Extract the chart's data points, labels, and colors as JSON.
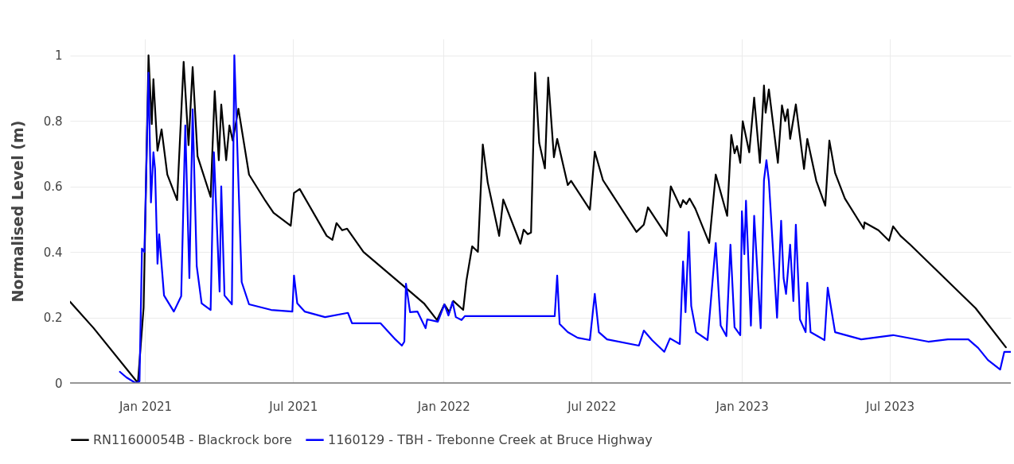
{
  "chart_data": {
    "type": "line",
    "ylabel": "Normalised Level (m)",
    "xlim": [
      "2020-10-01",
      "2023-11-26"
    ],
    "xticks": [
      {
        "value": "2021-01-01",
        "label": "Jan 2021"
      },
      {
        "value": "2021-07-01",
        "label": "Jul 2021"
      },
      {
        "value": "2022-01-01",
        "label": "Jan 2022"
      },
      {
        "value": "2022-07-01",
        "label": "Jul 2022"
      },
      {
        "value": "2023-01-01",
        "label": "Jan 2023"
      },
      {
        "value": "2023-07-01",
        "label": "Jul 2023"
      }
    ],
    "ylim": [
      0,
      1.05
    ],
    "yticks": [
      0,
      0.2,
      0.4,
      0.6,
      0.8,
      1
    ],
    "grid": true,
    "legend": "bottom",
    "marker": "none",
    "line_style": "solid",
    "series": [
      {
        "name": "RN11600054B - Blackrock bore",
        "color": "#000000",
        "x": [
          "2020-10-01",
          "2020-10-30",
          "2020-12-23",
          "2020-12-30",
          "2021-01-05",
          "2021-01-09",
          "2021-01-11",
          "2021-01-16",
          "2021-01-21",
          "2021-01-28",
          "2021-02-09",
          "2021-02-17",
          "2021-02-23",
          "2021-02-28",
          "2021-03-06",
          "2021-03-22",
          "2021-03-27",
          "2021-04-01",
          "2021-04-04",
          "2021-04-10",
          "2021-04-14",
          "2021-04-18",
          "2021-04-25",
          "2021-05-08",
          "2021-05-28",
          "2021-06-07",
          "2021-06-28",
          "2021-07-02",
          "2021-07-09",
          "2021-08-11",
          "2021-08-18",
          "2021-08-23",
          "2021-08-30",
          "2021-09-05",
          "2021-09-25",
          "2021-12-08",
          "2021-12-24",
          "2022-01-02",
          "2022-01-08",
          "2022-01-13",
          "2022-01-25",
          "2022-01-29",
          "2022-02-05",
          "2022-02-12",
          "2022-02-18",
          "2022-02-24",
          "2022-03-10",
          "2022-03-15",
          "2022-04-05",
          "2022-04-09",
          "2022-04-14",
          "2022-04-18",
          "2022-04-23",
          "2022-04-28",
          "2022-05-05",
          "2022-05-09",
          "2022-05-16",
          "2022-05-20",
          "2022-06-02",
          "2022-06-06",
          "2022-06-29",
          "2022-07-05",
          "2022-07-15",
          "2022-08-25",
          "2022-09-03",
          "2022-09-08",
          "2022-10-01",
          "2022-10-06",
          "2022-10-18",
          "2022-10-21",
          "2022-10-25",
          "2022-10-29",
          "2022-11-05",
          "2022-11-22",
          "2022-11-30",
          "2022-12-14",
          "2022-12-19",
          "2022-12-23",
          "2022-12-26",
          "2022-12-30",
          "2023-01-02",
          "2023-01-10",
          "2023-01-16",
          "2023-01-23",
          "2023-01-28",
          "2023-01-30",
          "2023-02-03",
          "2023-02-14",
          "2023-02-19",
          "2023-02-23",
          "2023-02-26",
          "2023-03-01",
          "2023-03-08",
          "2023-03-18",
          "2023-03-22",
          "2023-04-02",
          "2023-04-13",
          "2023-04-18",
          "2023-04-25",
          "2023-05-07",
          "2023-05-30",
          "2023-05-31",
          "2023-06-17",
          "2023-06-30",
          "2023-07-05",
          "2023-07-14",
          "2023-07-26",
          "2023-10-14",
          "2023-11-20"
        ],
        "values": [
          0.248,
          0.167,
          0,
          0.23,
          1.0,
          0.79,
          0.927,
          0.709,
          0.774,
          0.636,
          0.558,
          0.98,
          0.726,
          0.964,
          0.692,
          0.568,
          0.891,
          0.68,
          0.85,
          0.68,
          0.786,
          0.74,
          0.837,
          0.636,
          0.556,
          0.519,
          0.48,
          0.58,
          0.592,
          0.449,
          0.437,
          0.488,
          0.466,
          0.471,
          0.4,
          0.243,
          0.192,
          0.24,
          0.216,
          0.25,
          0.223,
          0.313,
          0.417,
          0.4,
          0.728,
          0.612,
          0.449,
          0.56,
          0.425,
          0.468,
          0.454,
          0.459,
          0.947,
          0.733,
          0.655,
          0.932,
          0.689,
          0.745,
          0.604,
          0.617,
          0.529,
          0.706,
          0.619,
          0.461,
          0.483,
          0.536,
          0.449,
          0.6,
          0.536,
          0.558,
          0.546,
          0.563,
          0.532,
          0.427,
          0.636,
          0.51,
          0.757,
          0.701,
          0.723,
          0.672,
          0.799,
          0.704,
          0.871,
          0.672,
          0.908,
          0.825,
          0.896,
          0.672,
          0.847,
          0.799,
          0.835,
          0.745,
          0.85,
          0.653,
          0.745,
          0.617,
          0.541,
          0.74,
          0.641,
          0.563,
          0.471,
          0.49,
          0.466,
          0.434,
          0.478,
          0.449,
          0.422,
          0.228,
          0.109
        ]
      },
      {
        "name": "1160129 - TBH - Trebonne Creek at Bruce Highway",
        "color": "#0000ff",
        "x": [
          "2020-12-01",
          "2020-12-09",
          "2020-12-20",
          "2020-12-25",
          "2020-12-28",
          "2020-12-31",
          "2021-01-05",
          "2021-01-08",
          "2021-01-11",
          "2021-01-13",
          "2021-01-16",
          "2021-01-18",
          "2021-01-24",
          "2021-02-05",
          "2021-02-14",
          "2021-02-19",
          "2021-02-24",
          "2021-02-28",
          "2021-03-05",
          "2021-03-11",
          "2021-03-22",
          "2021-03-26",
          "2021-04-02",
          "2021-04-04",
          "2021-04-08",
          "2021-04-17",
          "2021-04-20",
          "2021-04-29",
          "2021-05-08",
          "2021-06-04",
          "2021-06-30",
          "2021-07-02",
          "2021-07-06",
          "2021-07-15",
          "2021-08-09",
          "2021-09-06",
          "2021-09-11",
          "2021-10-16",
          "2021-11-03",
          "2021-11-11",
          "2021-11-14",
          "2021-11-16",
          "2021-11-21",
          "2021-11-30",
          "2021-12-10",
          "2021-12-12",
          "2021-12-25",
          "2022-01-02",
          "2022-01-07",
          "2022-01-12",
          "2022-01-16",
          "2022-01-23",
          "2022-01-27",
          "2022-05-17",
          "2022-05-20",
          "2022-05-23",
          "2022-06-02",
          "2022-06-14",
          "2022-06-29",
          "2022-07-05",
          "2022-07-10",
          "2022-07-20",
          "2022-08-28",
          "2022-09-03",
          "2022-09-13",
          "2022-09-28",
          "2022-10-05",
          "2022-10-17",
          "2022-10-21",
          "2022-10-24",
          "2022-10-28",
          "2022-10-31",
          "2022-11-06",
          "2022-11-20",
          "2022-11-30",
          "2022-12-06",
          "2022-12-13",
          "2022-12-18",
          "2022-12-23",
          "2022-12-30",
          "2023-01-01",
          "2023-01-04",
          "2023-01-06",
          "2023-01-12",
          "2023-01-16",
          "2023-01-24",
          "2023-01-28",
          "2023-01-31",
          "2023-02-03",
          "2023-02-13",
          "2023-02-18",
          "2023-02-21",
          "2023-02-24",
          "2023-03-01",
          "2023-03-05",
          "2023-03-08",
          "2023-03-13",
          "2023-03-20",
          "2023-03-22",
          "2023-03-26",
          "2023-04-12",
          "2023-04-16",
          "2023-04-25",
          "2023-05-27",
          "2023-07-05",
          "2023-08-17",
          "2023-09-10",
          "2023-10-05",
          "2023-10-17",
          "2023-10-29",
          "2023-11-13",
          "2023-11-18",
          "2023-11-26"
        ],
        "values": [
          0.034,
          0.017,
          0,
          0.005,
          0.41,
          0.4,
          0.947,
          0.551,
          0.704,
          0.653,
          0.364,
          0.454,
          0.267,
          0.218,
          0.265,
          0.786,
          0.32,
          0.835,
          0.357,
          0.243,
          0.223,
          0.704,
          0.279,
          0.6,
          0.267,
          0.24,
          1.0,
          0.308,
          0.24,
          0.223,
          0.218,
          0.328,
          0.243,
          0.218,
          0.201,
          0.214,
          0.182,
          0.182,
          0.133,
          0.114,
          0.126,
          0.303,
          0.216,
          0.218,
          0.167,
          0.194,
          0.187,
          0.24,
          0.206,
          0.248,
          0.201,
          0.192,
          0.204,
          0.204,
          0.328,
          0.18,
          0.155,
          0.138,
          0.131,
          0.272,
          0.155,
          0.133,
          0.114,
          0.16,
          0.131,
          0.095,
          0.136,
          0.119,
          0.371,
          0.216,
          0.461,
          0.235,
          0.155,
          0.131,
          0.427,
          0.175,
          0.143,
          0.422,
          0.17,
          0.146,
          0.524,
          0.393,
          0.556,
          0.175,
          0.51,
          0.167,
          0.619,
          0.68,
          0.617,
          0.199,
          0.495,
          0.32,
          0.272,
          0.422,
          0.25,
          0.483,
          0.194,
          0.155,
          0.306,
          0.155,
          0.131,
          0.291,
          0.155,
          0.133,
          0.146,
          0.126,
          0.133,
          0.133,
          0.107,
          0.07,
          0.041,
          0.095,
          0.095
        ]
      }
    ]
  }
}
